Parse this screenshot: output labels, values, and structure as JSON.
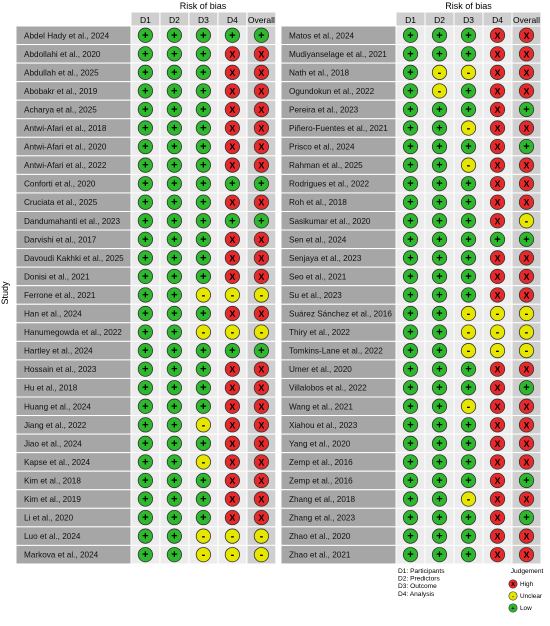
{
  "chart_data": {
    "type": "table",
    "title": "Risk of bias",
    "y_axis_label": "Study",
    "columns": [
      "D1",
      "D2",
      "D3",
      "D4",
      "Overall"
    ],
    "symbols": {
      "Low": "+",
      "Unclear": "-",
      "High": "X"
    },
    "colors": {
      "Low": "#2db82d",
      "Unclear": "#e6e600",
      "High": "#e8292b",
      "header_bg": "#cfcfcf",
      "study_bg": "#a6a6a6",
      "cell_bg": "#ececec",
      "overall_bg": "#cfcfcf"
    },
    "panels": [
      {
        "studies": [
          {
            "name": "Abdel Hady et al., 2024",
            "ratings": [
              "Low",
              "Low",
              "Low",
              "Low",
              "Low"
            ]
          },
          {
            "name": "Abdollahi et al., 2020",
            "ratings": [
              "Low",
              "Low",
              "Low",
              "High",
              "High"
            ]
          },
          {
            "name": "Abdullah et al., 2025",
            "ratings": [
              "Low",
              "Low",
              "Low",
              "High",
              "High"
            ]
          },
          {
            "name": "Abobakr et al., 2019",
            "ratings": [
              "Low",
              "Low",
              "Low",
              "High",
              "High"
            ]
          },
          {
            "name": "Acharya et al., 2025",
            "ratings": [
              "Low",
              "Low",
              "Low",
              "High",
              "High"
            ]
          },
          {
            "name": "Antwi-Afari et al., 2018",
            "ratings": [
              "Low",
              "Low",
              "Low",
              "High",
              "High"
            ]
          },
          {
            "name": "Antwi-Afari et al., 2020",
            "ratings": [
              "Low",
              "Low",
              "Low",
              "High",
              "High"
            ]
          },
          {
            "name": "Antwi-Afari et al., 2022",
            "ratings": [
              "Low",
              "Low",
              "Low",
              "High",
              "High"
            ]
          },
          {
            "name": "Conforti et al., 2020",
            "ratings": [
              "Low",
              "Low",
              "Low",
              "Low",
              "Low"
            ]
          },
          {
            "name": "Cruciata et al., 2025",
            "ratings": [
              "Low",
              "Low",
              "Low",
              "High",
              "High"
            ]
          },
          {
            "name": "Dandumahanti et al., 2023",
            "ratings": [
              "Low",
              "Low",
              "Low",
              "Low",
              "Low"
            ]
          },
          {
            "name": "Darvishi et al., 2017",
            "ratings": [
              "Low",
              "Low",
              "Low",
              "High",
              "High"
            ]
          },
          {
            "name": "Davoudi Kakhki et al., 2025",
            "ratings": [
              "Low",
              "Low",
              "Low",
              "High",
              "High"
            ]
          },
          {
            "name": "Donisi et al., 2021",
            "ratings": [
              "Low",
              "Low",
              "Low",
              "High",
              "High"
            ]
          },
          {
            "name": "Ferrone et al., 2021",
            "ratings": [
              "Low",
              "Low",
              "Unclear",
              "Unclear",
              "Unclear"
            ]
          },
          {
            "name": "Han et al., 2024",
            "ratings": [
              "Low",
              "Low",
              "Low",
              "High",
              "High"
            ]
          },
          {
            "name": "Hanumegowda et al., 2022",
            "ratings": [
              "Low",
              "Low",
              "Unclear",
              "Unclear",
              "Unclear"
            ]
          },
          {
            "name": "Hartley et al., 2024",
            "ratings": [
              "Low",
              "Low",
              "Low",
              "Low",
              "Low"
            ]
          },
          {
            "name": "Hossain et al., 2023",
            "ratings": [
              "Low",
              "Low",
              "Low",
              "High",
              "High"
            ]
          },
          {
            "name": "Hu et al., 2018",
            "ratings": [
              "Low",
              "Low",
              "Low",
              "High",
              "High"
            ]
          },
          {
            "name": "Huang et al., 2024",
            "ratings": [
              "Low",
              "Low",
              "Low",
              "High",
              "High"
            ]
          },
          {
            "name": "Jiang et al., 2022",
            "ratings": [
              "Low",
              "Low",
              "Unclear",
              "High",
              "High"
            ]
          },
          {
            "name": "Jiao et al., 2024",
            "ratings": [
              "Low",
              "Low",
              "Low",
              "High",
              "High"
            ]
          },
          {
            "name": "Kapse et al., 2024",
            "ratings": [
              "Low",
              "Low",
              "Unclear",
              "High",
              "High"
            ]
          },
          {
            "name": "Kim et al., 2018",
            "ratings": [
              "Low",
              "Low",
              "Low",
              "High",
              "High"
            ]
          },
          {
            "name": "Kim et al., 2019",
            "ratings": [
              "Low",
              "Low",
              "Low",
              "High",
              "High"
            ]
          },
          {
            "name": "Li et al., 2020",
            "ratings": [
              "Low",
              "Low",
              "Low",
              "High",
              "High"
            ]
          },
          {
            "name": "Luo et al., 2024",
            "ratings": [
              "Low",
              "Low",
              "Unclear",
              "Unclear",
              "Unclear"
            ]
          },
          {
            "name": "Markova et al., 2024",
            "ratings": [
              "Low",
              "Low",
              "Unclear",
              "Unclear",
              "Unclear"
            ]
          }
        ]
      },
      {
        "studies": [
          {
            "name": "Matos et al., 2024",
            "ratings": [
              "Low",
              "Low",
              "Low",
              "High",
              "High"
            ]
          },
          {
            "name": "Mudiyanselage et al., 2021",
            "ratings": [
              "Low",
              "Low",
              "Low",
              "High",
              "High"
            ]
          },
          {
            "name": "Nath et al., 2018",
            "ratings": [
              "Low",
              "Unclear",
              "Unclear",
              "High",
              "High"
            ]
          },
          {
            "name": "Ogundokun et al., 2022",
            "ratings": [
              "Low",
              "Unclear",
              "Low",
              "High",
              "High"
            ]
          },
          {
            "name": "Pereira et al., 2023",
            "ratings": [
              "Low",
              "Low",
              "Low",
              "High",
              "Low"
            ]
          },
          {
            "name": "Piñero-Fuentes et al., 2021",
            "ratings": [
              "Low",
              "Low",
              "Unclear",
              "High",
              "High"
            ]
          },
          {
            "name": "Prisco et al., 2024",
            "ratings": [
              "Low",
              "Low",
              "Low",
              "High",
              "Low"
            ]
          },
          {
            "name": "Rahman et al., 2025",
            "ratings": [
              "Low",
              "Low",
              "Unclear",
              "High",
              "High"
            ]
          },
          {
            "name": "Rodrigues et al., 2022",
            "ratings": [
              "Low",
              "Low",
              "Low",
              "High",
              "High"
            ]
          },
          {
            "name": "Roh et al., 2018",
            "ratings": [
              "Low",
              "Low",
              "Low",
              "High",
              "High"
            ]
          },
          {
            "name": "Sasikumar et al., 2020",
            "ratings": [
              "Low",
              "Low",
              "Low",
              "High",
              "Unclear"
            ]
          },
          {
            "name": "Sen et al., 2024",
            "ratings": [
              "Low",
              "Low",
              "Low",
              "Low",
              "Low"
            ]
          },
          {
            "name": "Senjaya et al., 2023",
            "ratings": [
              "Low",
              "Low",
              "Low",
              "High",
              "High"
            ]
          },
          {
            "name": "Seo et al., 2021",
            "ratings": [
              "Low",
              "Low",
              "Low",
              "High",
              "High"
            ]
          },
          {
            "name": "Su et al., 2023",
            "ratings": [
              "Low",
              "Low",
              "Low",
              "High",
              "High"
            ]
          },
          {
            "name": "Suárez Sánchez et al., 2016",
            "ratings": [
              "Low",
              "Low",
              "Unclear",
              "Unclear",
              "Unclear"
            ]
          },
          {
            "name": "Thiry et al., 2022",
            "ratings": [
              "Low",
              "Low",
              "Unclear",
              "Unclear",
              "Unclear"
            ]
          },
          {
            "name": "Tomkins-Lane et al., 2022",
            "ratings": [
              "Low",
              "Low",
              "Unclear",
              "Unclear",
              "Unclear"
            ]
          },
          {
            "name": "Umer et al., 2020",
            "ratings": [
              "Low",
              "Low",
              "Low",
              "High",
              "High"
            ]
          },
          {
            "name": "Villalobos et al., 2022",
            "ratings": [
              "Low",
              "Low",
              "Low",
              "High",
              "Low"
            ]
          },
          {
            "name": "Wang et al., 2021",
            "ratings": [
              "Low",
              "Low",
              "Unclear",
              "High",
              "High"
            ]
          },
          {
            "name": "Xiahou et al., 2023",
            "ratings": [
              "Low",
              "Low",
              "Low",
              "High",
              "High"
            ]
          },
          {
            "name": "Yang et al., 2020",
            "ratings": [
              "Low",
              "Low",
              "Low",
              "High",
              "High"
            ]
          },
          {
            "name": "Zemp et al., 2016",
            "ratings": [
              "Low",
              "Low",
              "Low",
              "High",
              "High"
            ]
          },
          {
            "name": "Zemp et al., 2016",
            "ratings": [
              "Low",
              "Low",
              "Low",
              "High",
              "Low"
            ]
          },
          {
            "name": "Zhang et al., 2018",
            "ratings": [
              "Low",
              "Low",
              "Unclear",
              "High",
              "High"
            ]
          },
          {
            "name": "Zhang et al., 2023",
            "ratings": [
              "Low",
              "Low",
              "Low",
              "High",
              "Low"
            ]
          },
          {
            "name": "Zhao et al., 2020",
            "ratings": [
              "Low",
              "Low",
              "Low",
              "High",
              "High"
            ]
          },
          {
            "name": "Zhao et al., 2021",
            "ratings": [
              "Low",
              "Low",
              "Low",
              "High",
              "High"
            ]
          }
        ]
      }
    ],
    "domain_legend": [
      "D1: Participants",
      "D2: Predictors",
      "D3: Outcome",
      "D4: Analysis"
    ],
    "judgement_legend": {
      "title": "Judgement",
      "items": [
        {
          "label": "High",
          "rating": "High"
        },
        {
          "label": "Unclear",
          "rating": "Unclear"
        },
        {
          "label": "Low",
          "rating": "Low"
        }
      ]
    }
  }
}
